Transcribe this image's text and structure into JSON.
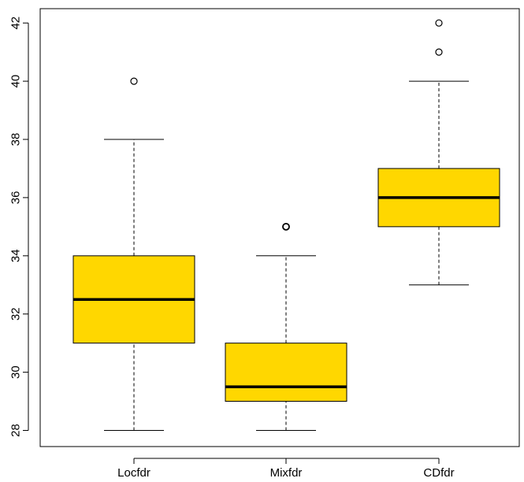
{
  "chart_data": {
    "type": "box",
    "title": "",
    "xlabel": "",
    "ylabel": "",
    "ylim": [
      27.5,
      42.6
    ],
    "yticks": [
      "28",
      "30",
      "32",
      "34",
      "36",
      "38",
      "40",
      "42"
    ],
    "categories": [
      "Locfdr",
      "Mixfdr",
      "CDfdr"
    ],
    "boxes": [
      {
        "label": "Locfdr",
        "whisker_low": 28,
        "q1": 31,
        "median": 32.5,
        "q3": 34,
        "whisker_high": 38,
        "outliers": [
          40
        ]
      },
      {
        "label": "Mixfdr",
        "whisker_low": 28,
        "q1": 29,
        "median": 29.5,
        "q3": 31,
        "whisker_high": 34,
        "outliers": [
          35
        ]
      },
      {
        "label": "CDfdr",
        "whisker_low": 33,
        "q1": 35,
        "median": 36,
        "q3": 37,
        "whisker_high": 40,
        "outliers": [
          41,
          42
        ]
      }
    ],
    "box_color": "#FFD700",
    "grid": false
  }
}
